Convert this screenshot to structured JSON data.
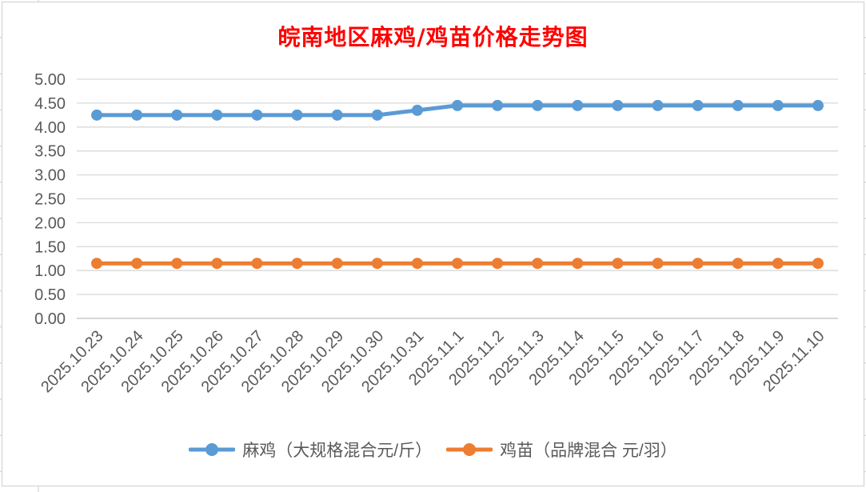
{
  "window": {
    "background": "#FFFFFF",
    "border_color": "#D9D9D9"
  },
  "chart_data": {
    "type": "line",
    "title": "皖南地区麻鸡/鸡苗价格走势图",
    "title_color": "#FF0000",
    "categories": [
      "2025.10.23",
      "2025.10.24",
      "2025.10.25",
      "2025.10.26",
      "2025.10.27",
      "2025.10.28",
      "2025.10.29",
      "2025.10.30",
      "2025.10.31",
      "2025.11.1",
      "2025.11.2",
      "2025.11.3",
      "2025.11.4",
      "2025.11.5",
      "2025.11.6",
      "2025.11.7",
      "2025.11.8",
      "2025.11.9",
      "2025.11.10"
    ],
    "series": [
      {
        "name": "麻鸡（大规格混合元/斤）",
        "color": "#5B9BD5",
        "values": [
          4.25,
          4.25,
          4.25,
          4.25,
          4.25,
          4.25,
          4.25,
          4.25,
          4.35,
          4.45,
          4.45,
          4.45,
          4.45,
          4.45,
          4.45,
          4.45,
          4.45,
          4.45,
          4.45
        ]
      },
      {
        "name": "鸡苗（品牌混合 元/羽）",
        "color": "#ED7D31",
        "values": [
          1.15,
          1.15,
          1.15,
          1.15,
          1.15,
          1.15,
          1.15,
          1.15,
          1.15,
          1.15,
          1.15,
          1.15,
          1.15,
          1.15,
          1.15,
          1.15,
          1.15,
          1.15,
          1.15
        ]
      }
    ],
    "ylim": [
      0,
      5
    ],
    "ytick_labels": [
      "0.00",
      "0.50",
      "1.00",
      "1.50",
      "2.00",
      "2.50",
      "3.00",
      "3.50",
      "4.00",
      "4.50",
      "5.00"
    ],
    "grid": true,
    "gridline_color": "#D9D9D9",
    "axis_line_color": "#BFBFBF",
    "axis_label_color": "#595959",
    "x_label_rotation": -45,
    "legend_position": "bottom"
  }
}
